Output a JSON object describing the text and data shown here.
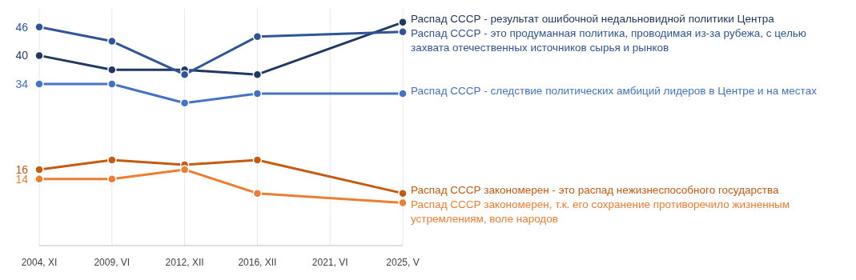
{
  "chart_data": {
    "type": "line",
    "categories": [
      "2004, XI",
      "2009, VI",
      "2012, XII",
      "2016, XII",
      "2021, VI",
      "2025, V"
    ],
    "ylim": [
      0,
      50
    ],
    "grid": "x",
    "marker": "circle",
    "line_style": "solid",
    "series": [
      {
        "name": "Распад СССР - результат ошибочной недальновидной политики Центра",
        "color": "#203864",
        "values": [
          40,
          37,
          37,
          36,
          null,
          47
        ],
        "value_labels": [
          "40",
          null,
          null,
          null,
          null,
          null
        ]
      },
      {
        "name": "Распад СССР - это продуманная политика, проводимая из-за рубежа, с целью захвата отечественных источников сырья и рынков",
        "color": "#2f5597",
        "values": [
          46,
          43,
          36,
          44,
          null,
          45
        ],
        "value_labels": [
          "46",
          null,
          null,
          null,
          null,
          null
        ]
      },
      {
        "name": "Распад СССР - следствие политических амбиций лидеров в Центре и на местах",
        "color": "#4472c4",
        "values": [
          34,
          34,
          30,
          32,
          null,
          32
        ],
        "value_labels": [
          "34",
          null,
          null,
          null,
          null,
          null
        ]
      },
      {
        "name": "Распад СССР закономерен - это распад нежизнеспособного государства",
        "color": "#c55a11",
        "values": [
          16,
          18,
          17,
          18,
          null,
          11
        ],
        "value_labels": [
          "16",
          null,
          null,
          null,
          null,
          null
        ]
      },
      {
        "name": "Распад СССР закономерен, т.к. его сохранение противоречило жизненным устремлениям, воле народов",
        "color": "#ed7d31",
        "values": [
          14,
          14,
          16,
          11,
          null,
          9
        ],
        "value_labels": [
          "14",
          null,
          null,
          null,
          null,
          null
        ]
      }
    ]
  }
}
